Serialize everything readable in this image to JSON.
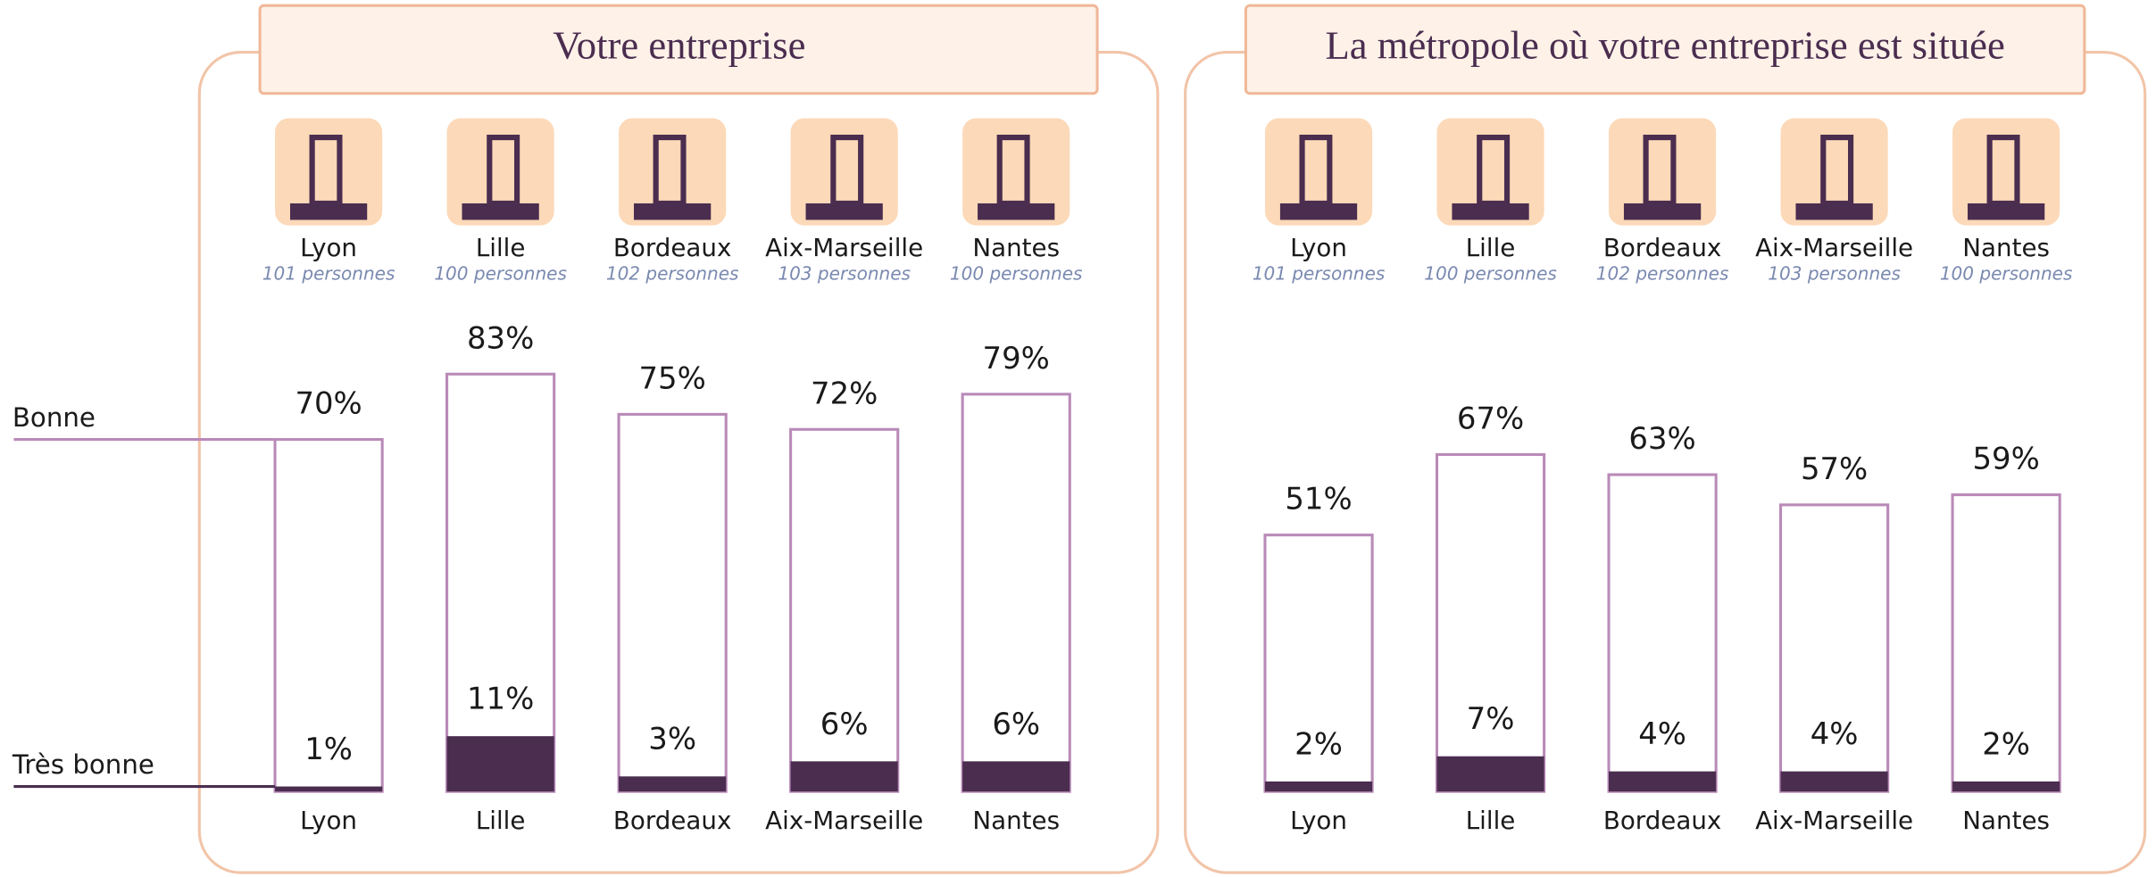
{
  "chart_data": [
    {
      "type": "bar",
      "title": "Votre entreprise",
      "categories": [
        "Lyon",
        "Lille",
        "Bordeaux",
        "Aix-Marseille",
        "Nantes"
      ],
      "subtitles": [
        "101 personnes",
        "100 personnes",
        "102 personnes",
        "103 personnes",
        "100 personnes"
      ],
      "series": [
        {
          "name": "Bonne",
          "color": "#b98ab8",
          "values": [
            70,
            83,
            75,
            72,
            79
          ],
          "value_labels": [
            "70%",
            "83%",
            "75%",
            "72%",
            "79%"
          ]
        },
        {
          "name": "Très bonne",
          "color": "#4a2d4f",
          "values": [
            1,
            11,
            3,
            6,
            6
          ],
          "value_labels": [
            "1%",
            "11%",
            "3%",
            "6%",
            "6%"
          ]
        }
      ],
      "ylim": [
        0,
        100
      ]
    },
    {
      "type": "bar",
      "title": "La métropole où votre entreprise est située",
      "categories": [
        "Lyon",
        "Lille",
        "Bordeaux",
        "Aix-Marseille",
        "Nantes"
      ],
      "subtitles": [
        "101 personnes",
        "100 personnes",
        "102 personnes",
        "103 personnes",
        "100 personnes"
      ],
      "series": [
        {
          "color": "#b98ab8",
          "values": [
            51,
            67,
            63,
            57,
            59
          ],
          "value_labels": [
            "51%",
            "67%",
            "63%",
            "57%",
            "59%"
          ]
        },
        {
          "color": "#4a2d4f",
          "values": [
            2,
            7,
            4,
            4,
            2
          ],
          "value_labels": [
            "2%",
            "7%",
            "4%",
            "4%",
            "2%"
          ]
        }
      ],
      "ylim": [
        0,
        100
      ]
    }
  ]
}
